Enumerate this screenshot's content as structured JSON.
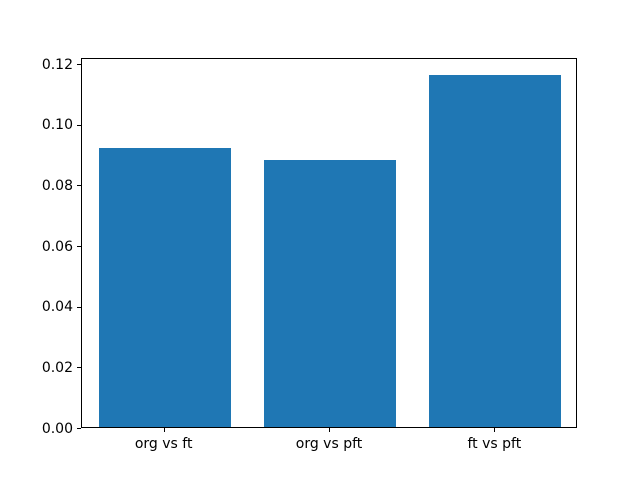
{
  "chart_data": {
    "type": "bar",
    "title": "",
    "xlabel": "",
    "ylabel": "",
    "categories": [
      "org vs ft",
      "org vs pft",
      "ft vs pft"
    ],
    "values": [
      0.092,
      0.088,
      0.116
    ],
    "bar_color": "#1f77b4",
    "ylim": [
      0,
      0.122
    ],
    "yticks": [
      0.0,
      0.02,
      0.04,
      0.06,
      0.08,
      0.1,
      0.12
    ],
    "ytick_labels": [
      "0.00",
      "0.02",
      "0.04",
      "0.06",
      "0.08",
      "0.10",
      "0.12"
    ],
    "grid": false,
    "legend": null,
    "bar_width_fraction": 0.8
  }
}
